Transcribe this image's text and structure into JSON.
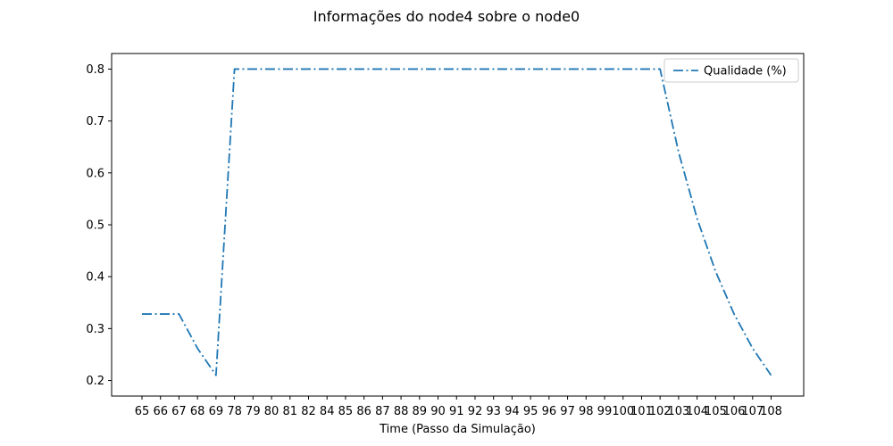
{
  "chart_data": {
    "type": "line",
    "title": "Informações do node4 sobre o node0",
    "xlabel": "Time (Passo da Simulação)",
    "ylabel": "",
    "categories": [
      "65",
      "66",
      "67",
      "68",
      "69",
      "78",
      "79",
      "80",
      "81",
      "82",
      "84",
      "85",
      "86",
      "87",
      "88",
      "89",
      "90",
      "91",
      "92",
      "93",
      "94",
      "95",
      "96",
      "97",
      "98",
      "99",
      "100",
      "101",
      "102",
      "103",
      "104",
      "105",
      "106",
      "107",
      "108"
    ],
    "series": [
      {
        "name": "Qualidade (%)",
        "color": "#1f77b4",
        "line_style": "dashdot",
        "values": [
          0.328,
          0.328,
          0.328,
          0.262,
          0.21,
          0.8,
          0.8,
          0.8,
          0.8,
          0.8,
          0.8,
          0.8,
          0.8,
          0.8,
          0.8,
          0.8,
          0.8,
          0.8,
          0.8,
          0.8,
          0.8,
          0.8,
          0.8,
          0.8,
          0.8,
          0.8,
          0.8,
          0.8,
          0.8,
          0.64,
          0.512,
          0.41,
          0.328,
          0.262,
          0.21
        ]
      }
    ],
    "yticks": [
      0.2,
      0.3,
      0.4,
      0.5,
      0.6,
      0.7,
      0.8
    ],
    "ytick_labels": [
      "0.2",
      "0.3",
      "0.4",
      "0.5",
      "0.6",
      "0.7",
      "0.8"
    ],
    "ylim": [
      0.17,
      0.83
    ],
    "legend": {
      "position": "top-right"
    },
    "grid": false
  }
}
